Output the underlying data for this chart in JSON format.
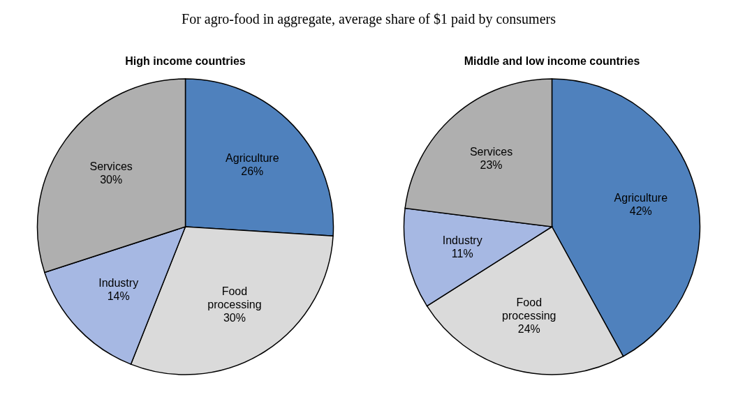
{
  "chart_data": [
    {
      "type": "pie",
      "title": "High income countries",
      "annotations": [
        "For agro-food in aggregate, average share of $1 paid by consumers"
      ],
      "categories": [
        "Agriculture",
        "Food processing",
        "Industry",
        "Services"
      ],
      "values": [
        26,
        30,
        14,
        30
      ],
      "value_labels": [
        "26%",
        "30%",
        "14%",
        "30%"
      ],
      "colors": [
        "#4f81bd",
        "#dadada",
        "#a6b8e3",
        "#afafaf"
      ]
    },
    {
      "type": "pie",
      "title": "Middle and low income countries",
      "categories": [
        "Agriculture",
        "Food processing",
        "Industry",
        "Services"
      ],
      "values": [
        42,
        24,
        11,
        23
      ],
      "value_labels": [
        "42%",
        "24%",
        "11%",
        "23%"
      ],
      "colors": [
        "#4f81bd",
        "#dadada",
        "#a6b8e3",
        "#afafaf"
      ]
    }
  ]
}
